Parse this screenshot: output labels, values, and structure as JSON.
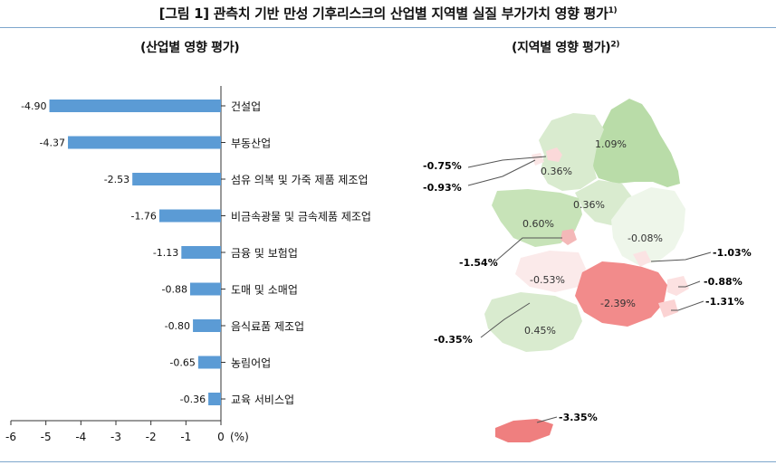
{
  "figure_title": "[그림 1] 관측치 기반 만성 기후리스크의 산업별 지역별 실질 부가가치 영향 평가",
  "figure_title_sup": "1)",
  "left_panel_title": "(산업별 영향 평가)",
  "right_panel_title": "(지역별 영향 평가)",
  "right_panel_title_sup": "2)",
  "chart_data": [
    {
      "type": "bar",
      "orientation": "horizontal",
      "categories": [
        "건설업",
        "부동산업",
        "섬유 의복 및 가죽 제품 제조업",
        "비금속광물 및 금속제품 제조업",
        "금융 및 보험업",
        "도매 및 소매업",
        "음식료품 제조업",
        "농림어업",
        "교육 서비스업"
      ],
      "values": [
        -4.9,
        -4.37,
        -2.53,
        -1.76,
        -1.13,
        -0.88,
        -0.8,
        -0.65,
        -0.36
      ],
      "value_labels": [
        "-4.90",
        "-4.37",
        "-2.53",
        "-1.76",
        "-1.13",
        "-0.88",
        "-0.80",
        "-0.65",
        "-0.36"
      ],
      "xlim": [
        -6,
        0
      ],
      "xticks": [
        "-6",
        "-5",
        "-4",
        "-3",
        "-2",
        "-1",
        "0"
      ],
      "xunit": "(%)",
      "bar_color": "#5b9bd5"
    },
    {
      "type": "map",
      "region_values": [
        "1.09%",
        "0.36%",
        "-0.75%",
        "-0.93%",
        "0.36%",
        "0.60%",
        "-0.08%",
        "-1.03%",
        "-1.54%",
        "-0.53%",
        "-2.39%",
        "-0.88%",
        "-1.31%",
        "-0.35%",
        "0.45%",
        "-3.35%"
      ],
      "colors": {
        "positive_light": "#d9ebcf",
        "positive": "#b9dca8",
        "negative_light": "#fbd9d9",
        "negative": "#f28b8b",
        "strong_negative": "#ef7f7f"
      }
    }
  ]
}
